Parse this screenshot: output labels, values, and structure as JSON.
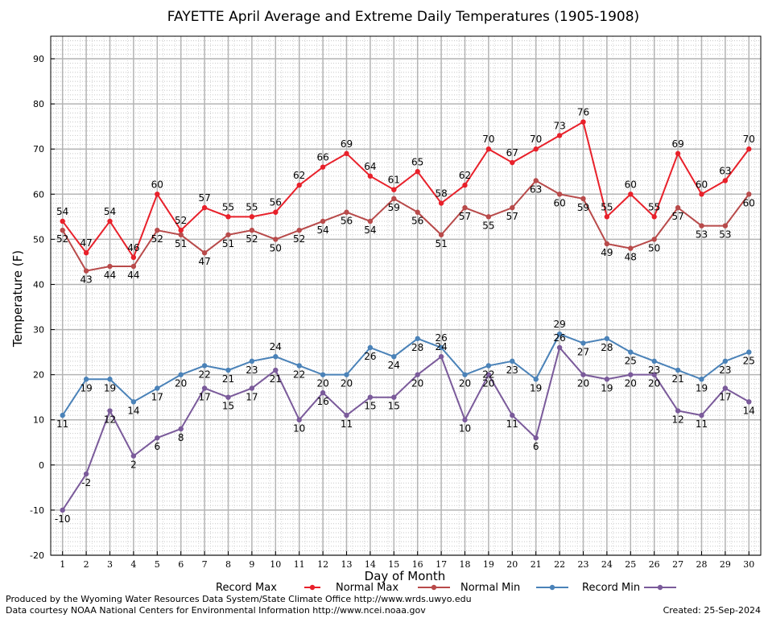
{
  "chart_data": {
    "type": "line",
    "title": "FAYETTE April Average and Extreme Daily Temperatures (1905-1908)",
    "xlabel": "Day of Month",
    "ylabel": "Temperature (F)",
    "ylim": [
      -20,
      95
    ],
    "y_ticks": [
      -20,
      -10,
      0,
      10,
      20,
      30,
      40,
      50,
      60,
      70,
      80,
      90
    ],
    "x": [
      1,
      2,
      3,
      4,
      5,
      6,
      7,
      8,
      9,
      10,
      11,
      12,
      13,
      14,
      15,
      16,
      17,
      18,
      19,
      20,
      21,
      22,
      23,
      24,
      25,
      26,
      27,
      28,
      29,
      30
    ],
    "grid": true,
    "legend_position": "bottom",
    "series": [
      {
        "name": "Record Max",
        "color": "#e8202a",
        "values": [
          54,
          47,
          54,
          46,
          60,
          52,
          57,
          55,
          55,
          56,
          62,
          66,
          69,
          64,
          61,
          65,
          58,
          62,
          70,
          67,
          70,
          73,
          76,
          55,
          60,
          55,
          69,
          60,
          63,
          70
        ]
      },
      {
        "name": "Normal Max",
        "color": "#b84a4a",
        "values": [
          52,
          43,
          44,
          44,
          52,
          51,
          47,
          51,
          52,
          50,
          52,
          54,
          56,
          54,
          59,
          56,
          51,
          57,
          55,
          57,
          63,
          60,
          59,
          49,
          48,
          50,
          57,
          53,
          53,
          60
        ]
      },
      {
        "name": "Normal Min",
        "color": "#4a82b8",
        "values": [
          11,
          19,
          19,
          14,
          17,
          20,
          22,
          21,
          23,
          24,
          22,
          20,
          20,
          26,
          24,
          28,
          26,
          20,
          22,
          23,
          19,
          29,
          27,
          28,
          25,
          23,
          21,
          19,
          23,
          25
        ]
      },
      {
        "name": "Record Min",
        "color": "#7a5a9a",
        "values": [
          -10,
          -2,
          12,
          2,
          6,
          8,
          17,
          15,
          17,
          21,
          10,
          16,
          11,
          15,
          15,
          20,
          24,
          10,
          20,
          11,
          6,
          26,
          20,
          19,
          20,
          20,
          12,
          11,
          17,
          14
        ]
      }
    ]
  },
  "footer": {
    "produced_by": "Produced by the Wyoming Water Resources Data System/State Climate Office http://www.wrds.uwyo.edu",
    "data_courtesy": "Data courtesy NOAA National Centers for Environmental Information http://www.ncei.noaa.gov",
    "created": "Created:  25-Sep-2024"
  }
}
